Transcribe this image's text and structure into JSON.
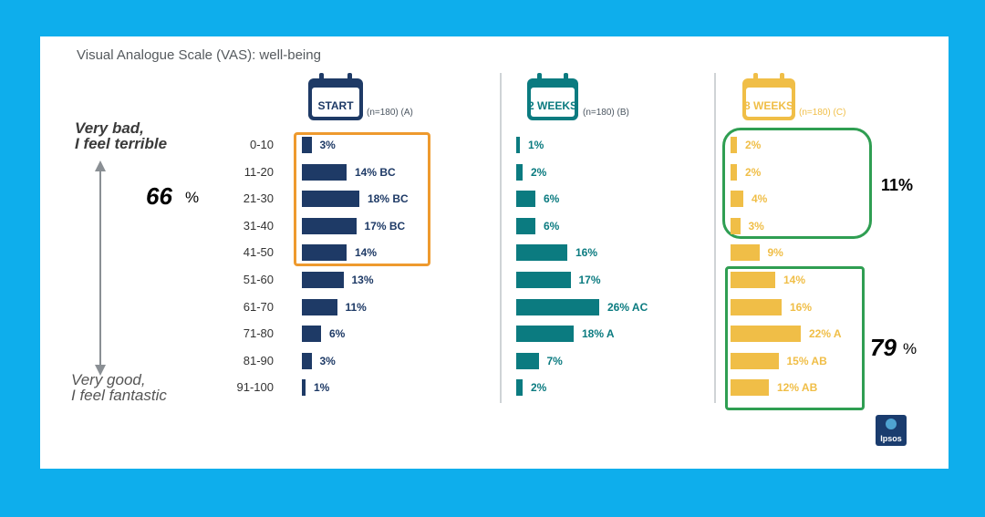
{
  "title": "Visual Analogue Scale (VAS): well-being",
  "scale": {
    "top_line1": "Very bad,",
    "top_line2": "I feel terrible",
    "bottom_line1": "Very good,",
    "bottom_line2": "I feel fantastic"
  },
  "highlights": {
    "left_pct": "66",
    "left_sign": "%",
    "right_top_pct": "11%",
    "right_bottom_pct": "79",
    "right_bottom_sign": "%"
  },
  "logo_text": "Ipsos",
  "colors": {
    "start": "#1e3a66",
    "weeks2": "#0b7b80",
    "weeks8": "#f0be47",
    "orange_box": "#ee9a2e",
    "green_box": "#2f9e52",
    "background": "#0eaeec"
  },
  "chart_data": {
    "type": "bar",
    "title": "Visual Analogue Scale (VAS): well-being",
    "orientation": "horizontal",
    "categories": [
      "0-10",
      "11-20",
      "21-30",
      "31-40",
      "41-50",
      "51-60",
      "61-70",
      "71-80",
      "81-90",
      "91-100"
    ],
    "series": [
      {
        "key": "start",
        "name": "START",
        "n_label": "(n=180) (A)",
        "values": [
          3,
          14,
          18,
          17,
          14,
          13,
          11,
          6,
          3,
          1
        ],
        "labels": [
          "3%",
          "14% BC",
          "18% BC",
          "17% BC",
          "14%",
          "13%",
          "11%",
          "6%",
          "3%",
          "1%"
        ]
      },
      {
        "key": "weeks2",
        "name": "2 WEEKS",
        "n_label": "(n=180) (B)",
        "values": [
          1,
          2,
          6,
          6,
          16,
          17,
          26,
          18,
          7,
          2
        ],
        "labels": [
          "1%",
          "2%",
          "6%",
          "6%",
          "16%",
          "17%",
          "26% AC",
          "18% A",
          "7%",
          "2%"
        ]
      },
      {
        "key": "weeks8",
        "name": "8 WEEKS",
        "n_label": "(n=180) (C)",
        "values": [
          2,
          2,
          4,
          3,
          9,
          14,
          16,
          22,
          15,
          12
        ],
        "labels": [
          "2%",
          "2%",
          "4%",
          "3%",
          "9%",
          "14%",
          "16%",
          "22% A",
          "15% AB",
          "12% AB"
        ]
      }
    ]
  }
}
